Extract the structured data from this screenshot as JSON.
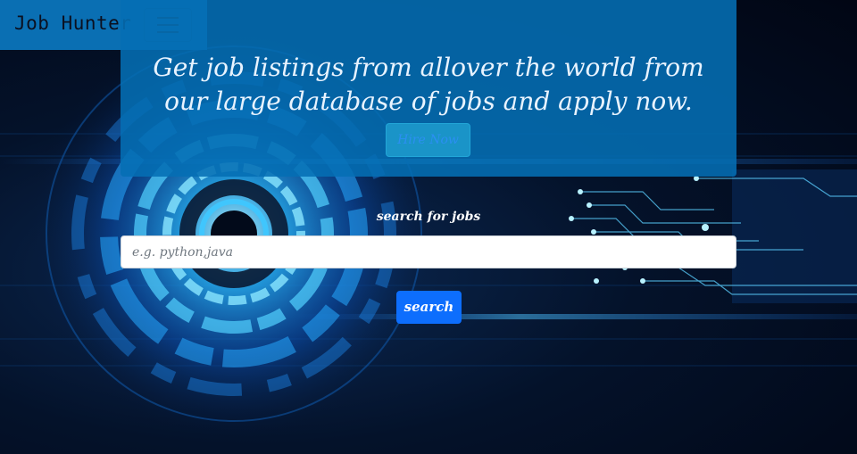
{
  "navbar": {
    "brand": "Job Hunter",
    "toggle_icon": "hamburger-menu-icon"
  },
  "hero": {
    "title_line1": "Get job listings from allover the world from",
    "title_line2": "our large database of jobs and apply now.",
    "hire_button": "Hire Now"
  },
  "search": {
    "label": "search for jobs",
    "placeholder": "e.g. python,java",
    "value": "",
    "button": "search"
  },
  "colors": {
    "navbar_bg": "#0a6fb3",
    "hero_bg": "#056eb4",
    "primary_button": "#0d6efd",
    "hire_button_bg": "#1a94c8",
    "page_bg": "#020a1a"
  }
}
